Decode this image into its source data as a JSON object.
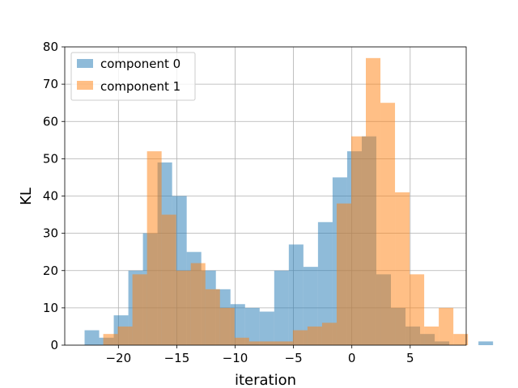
{
  "chart_data": {
    "type": "bar",
    "subtype": "overlapping-histogram",
    "xlabel": "iteration",
    "ylabel": "KL",
    "xlim": [
      -24.6,
      9.8
    ],
    "ylim": [
      0,
      80
    ],
    "x_ticks": [
      -20,
      -15,
      -10,
      -5,
      0,
      5
    ],
    "x_tick_labels": [
      "−20",
      "−15",
      "−10",
      "−5",
      "0",
      "5"
    ],
    "y_ticks": [
      0,
      10,
      20,
      30,
      40,
      50,
      60,
      70,
      80
    ],
    "y_tick_labels": [
      "0",
      "10",
      "20",
      "30",
      "40",
      "50",
      "60",
      "70",
      "80"
    ],
    "grid": true,
    "legend_position": "top-left",
    "series": [
      {
        "name": "component 0",
        "color": "#1f77b4",
        "alpha": 0.5,
        "bin_start": -22.9,
        "bin_width": 1.25,
        "values": [
          4,
          2,
          8,
          20,
          30,
          49,
          40,
          25,
          20,
          15,
          11,
          10,
          9,
          20,
          27,
          21,
          33,
          45,
          52,
          56,
          19,
          10,
          5,
          3,
          1,
          0,
          0,
          1
        ]
      },
      {
        "name": "component 1",
        "color": "#ff7f0e",
        "alpha": 0.5,
        "bin_start": -21.3,
        "bin_width": 1.25,
        "values": [
          3,
          5,
          19,
          52,
          35,
          20,
          22,
          15,
          10,
          2,
          1,
          1,
          1,
          4,
          5,
          6,
          38,
          56,
          77,
          65,
          41,
          19,
          5,
          10,
          3
        ]
      }
    ]
  }
}
